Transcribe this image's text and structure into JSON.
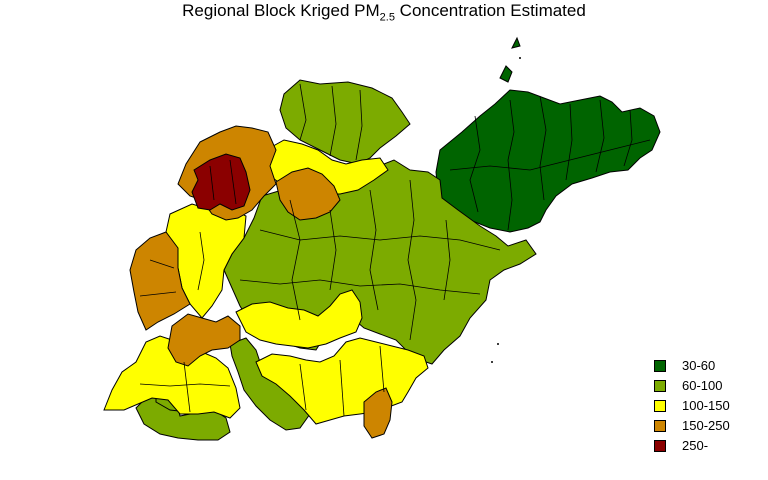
{
  "title": {
    "prefix": "Regional Block Kriged PM",
    "subscript": "2.5",
    "suffix": " Concentration Estimated"
  },
  "legend": {
    "items": [
      {
        "label": "30-60",
        "color": "#006400"
      },
      {
        "label": "60-100",
        "color": "#7cab00"
      },
      {
        "label": "100-150",
        "color": "#ffff00"
      },
      {
        "label": "150-250",
        "color": "#cd8500"
      },
      {
        "label": "250-",
        "color": "#8b0000"
      }
    ]
  },
  "colors": {
    "class_30_60": "#006400",
    "class_60_100": "#7cab00",
    "class_100_150": "#ffff00",
    "class_150_250": "#cd8500",
    "class_250_plus": "#8b0000",
    "boundary": "#000000",
    "background": "#ffffff"
  }
}
